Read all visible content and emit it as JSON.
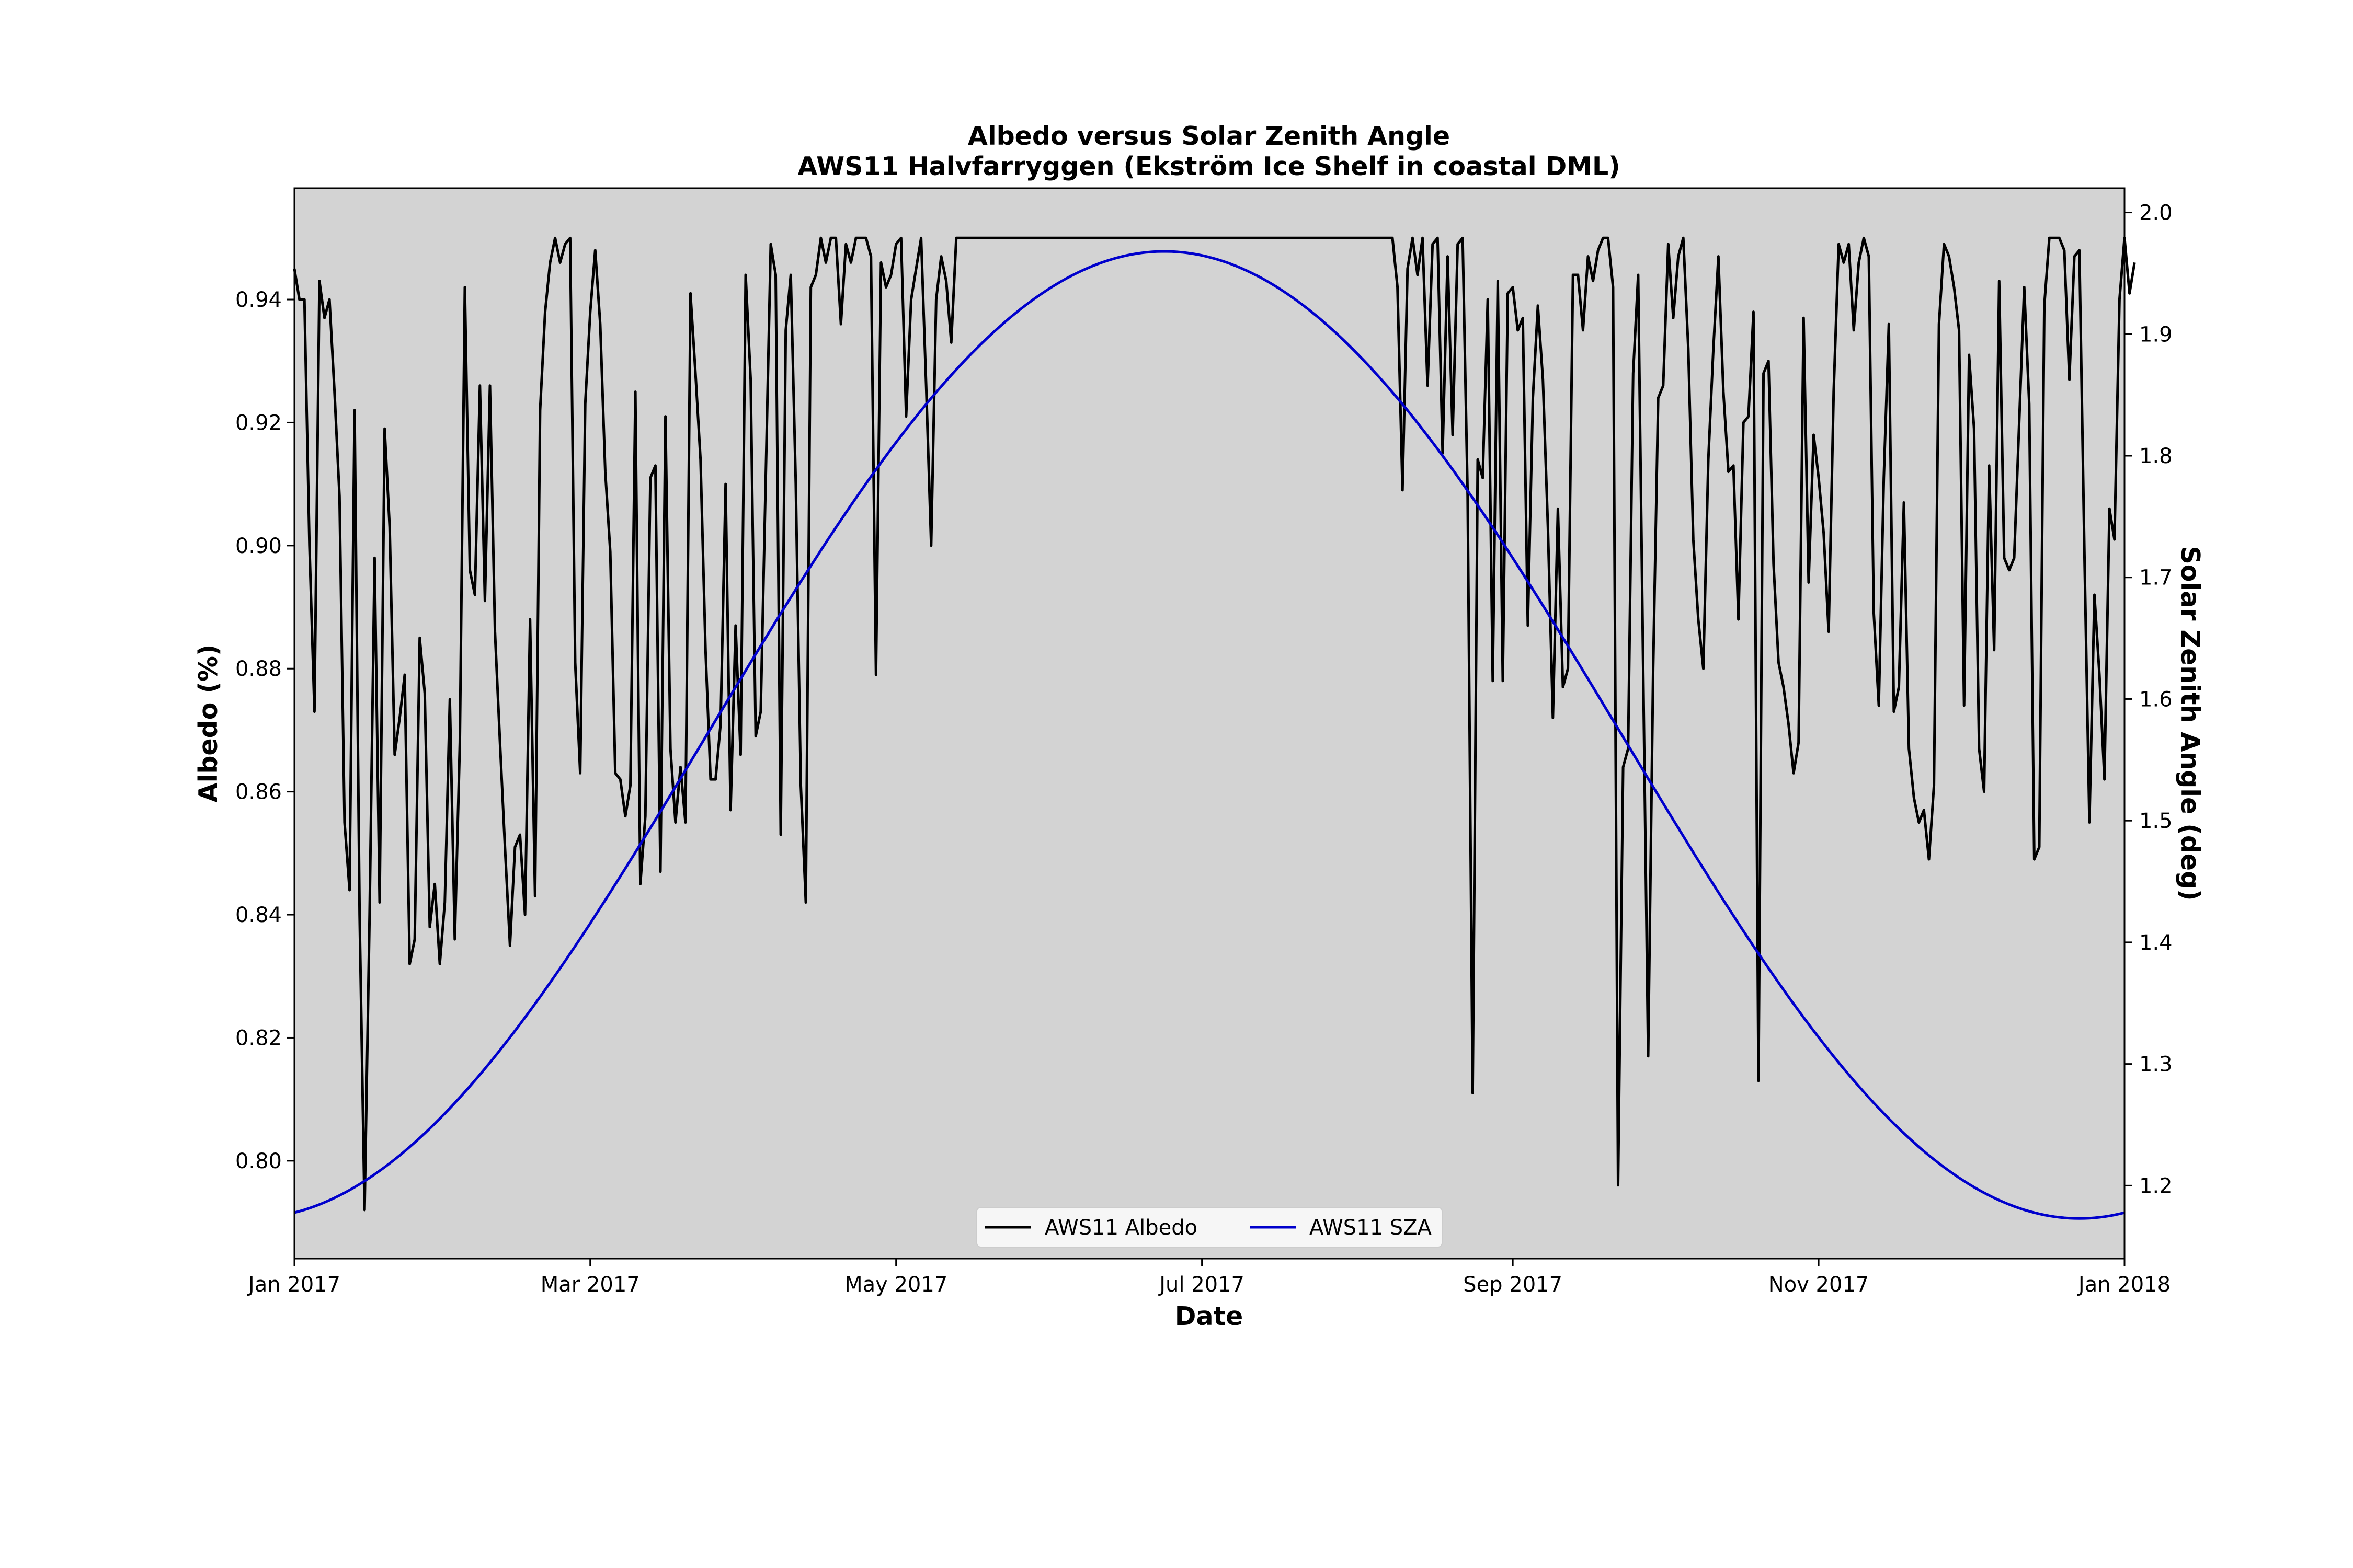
{
  "chart_data": {
    "type": "line",
    "title": "Albedo versus Solar Zenith Angle",
    "subtitle": "AWS11 Halvfarryggen (Ekström Ice Shelf in coastal DML)",
    "xlabel": "Date",
    "ylabel": "Albedo (%)",
    "y2label": "Solar Zenith Angle (deg)",
    "xlim": [
      "2017-01-01",
      "2018-01-01"
    ],
    "ylim": [
      0.7841,
      0.9581
    ],
    "y2lim": [
      1.14,
      2.02
    ],
    "x_ticks": [
      {
        "date": "2017-01-01",
        "label": "Jan 2017"
      },
      {
        "date": "2017-03-01",
        "label": "Mar 2017"
      },
      {
        "date": "2017-05-01",
        "label": "May 2017"
      },
      {
        "date": "2017-07-01",
        "label": "Jul 2017"
      },
      {
        "date": "2017-09-01",
        "label": "Sep 2017"
      },
      {
        "date": "2017-11-01",
        "label": "Nov 2017"
      },
      {
        "date": "2018-01-01",
        "label": "Jan 2018"
      }
    ],
    "y_ticks": [
      "0.80",
      "0.82",
      "0.84",
      "0.86",
      "0.88",
      "0.90",
      "0.92",
      "0.94"
    ],
    "y2_ticks": [
      "1.2",
      "1.3",
      "1.4",
      "1.5",
      "1.6",
      "1.7",
      "1.8",
      "1.9",
      "2.0"
    ],
    "grid": false,
    "legend_position": "bottom-center",
    "background_color": "#d3d3d3",
    "series": [
      {
        "name": "AWS11 Albedo",
        "axis": "left",
        "color": "#000000",
        "x_start": "2017-01-01",
        "x_step_days": 1,
        "values": [
          0.945,
          0.94,
          0.94,
          0.9,
          0.873,
          0.943,
          0.937,
          0.94,
          0.925,
          0.908,
          0.855,
          0.844,
          0.922,
          0.84,
          0.792,
          0.84,
          0.898,
          0.842,
          0.919,
          0.903,
          0.866,
          0.872,
          0.879,
          0.832,
          0.836,
          0.885,
          0.876,
          0.838,
          0.845,
          0.832,
          0.842,
          0.875,
          0.836,
          0.868,
          0.942,
          0.896,
          0.892,
          0.926,
          0.891,
          0.926,
          0.886,
          0.868,
          0.851,
          0.835,
          0.851,
          0.853,
          0.84,
          0.888,
          0.843,
          0.922,
          0.938,
          0.946,
          0.95,
          0.946,
          0.949,
          0.95,
          0.881,
          0.863,
          0.923,
          0.938,
          0.948,
          0.936,
          0.912,
          0.899,
          0.863,
          0.862,
          0.856,
          0.861,
          0.925,
          0.845,
          0.856,
          0.911,
          0.913,
          0.847,
          0.921,
          0.867,
          0.855,
          0.864,
          0.855,
          0.941,
          0.928,
          0.914,
          0.883,
          0.862,
          0.862,
          0.871,
          0.91,
          0.857,
          0.887,
          0.866,
          0.944,
          0.927,
          0.869,
          0.873,
          0.911,
          0.949,
          0.944,
          0.853,
          0.935,
          0.944,
          0.91,
          0.861,
          0.842,
          0.942,
          0.944,
          0.95,
          0.946,
          0.95,
          0.95,
          0.936,
          0.949,
          0.946,
          0.95,
          0.95,
          0.95,
          0.947,
          0.879,
          0.946,
          0.942,
          0.944,
          0.949,
          0.95,
          0.921,
          0.94,
          0.945,
          0.95,
          0.926,
          0.9,
          0.94,
          0.947,
          0.943,
          0.933,
          0.95,
          0.95,
          0.95,
          0.95,
          0.95,
          0.95,
          0.95,
          0.95,
          0.95,
          0.95,
          0.95,
          0.95,
          0.95,
          0.95,
          0.95,
          0.95,
          0.95,
          0.95,
          0.95,
          0.95,
          0.95,
          0.95,
          0.95,
          0.95,
          0.95,
          0.95,
          0.95,
          0.95,
          0.95,
          0.95,
          0.95,
          0.95,
          0.95,
          0.95,
          0.95,
          0.95,
          0.95,
          0.95,
          0.95,
          0.95,
          0.95,
          0.95,
          0.95,
          0.95,
          0.95,
          0.95,
          0.95,
          0.95,
          0.95,
          0.95,
          0.95,
          0.95,
          0.95,
          0.95,
          0.95,
          0.95,
          0.95,
          0.95,
          0.95,
          0.95,
          0.95,
          0.95,
          0.95,
          0.95,
          0.95,
          0.95,
          0.95,
          0.95,
          0.95,
          0.95,
          0.95,
          0.95,
          0.95,
          0.95,
          0.95,
          0.95,
          0.95,
          0.95,
          0.95,
          0.95,
          0.95,
          0.95,
          0.95,
          0.95,
          0.95,
          0.95,
          0.95,
          0.95,
          0.942,
          0.909,
          0.945,
          0.95,
          0.944,
          0.95,
          0.926,
          0.949,
          0.95,
          0.915,
          0.947,
          0.918,
          0.949,
          0.95,
          0.908,
          0.811,
          0.914,
          0.911,
          0.94,
          0.878,
          0.943,
          0.878,
          0.941,
          0.942,
          0.935,
          0.937,
          0.887,
          0.924,
          0.939,
          0.927,
          0.903,
          0.872,
          0.906,
          0.877,
          0.88,
          0.944,
          0.944,
          0.935,
          0.947,
          0.943,
          0.948,
          0.95,
          0.95,
          0.942,
          0.796,
          0.864,
          0.867,
          0.928,
          0.944,
          0.88,
          0.817,
          0.88,
          0.924,
          0.926,
          0.949,
          0.937,
          0.947,
          0.95,
          0.932,
          0.901,
          0.888,
          0.88,
          0.914,
          0.932,
          0.947,
          0.925,
          0.912,
          0.913,
          0.888,
          0.92,
          0.921,
          0.938,
          0.813,
          0.928,
          0.93,
          0.897,
          0.881,
          0.877,
          0.871,
          0.863,
          0.868,
          0.937,
          0.894,
          0.918,
          0.911,
          0.902,
          0.886,
          0.925,
          0.949,
          0.946,
          0.949,
          0.935,
          0.946,
          0.95,
          0.947,
          0.889,
          0.874,
          0.911,
          0.936,
          0.873,
          0.877,
          0.907,
          0.867,
          0.859,
          0.855,
          0.857,
          0.849,
          0.861,
          0.936,
          0.949,
          0.947,
          0.942,
          0.935,
          0.874,
          0.931,
          0.919,
          0.867,
          0.86,
          0.913,
          0.883,
          0.943,
          0.898,
          0.896,
          0.898,
          0.92,
          0.942,
          0.923,
          0.849,
          0.851,
          0.939,
          0.95,
          0.95,
          0.95,
          0.948,
          0.927,
          0.947,
          0.948,
          0.899,
          0.855,
          0.892,
          0.879,
          0.862,
          0.906,
          0.901,
          0.94,
          0.95,
          0.941,
          0.946
        ]
      },
      {
        "name": "AWS11 SZA",
        "axis": "right",
        "color": "#0000cc",
        "x_start": "2017-01-01",
        "x_step_days": 1,
        "model": "min + (max - min) * (1 - cos(2*pi*(day - 356)/365)) / 2",
        "min": 1.173,
        "max": 1.968
      }
    ]
  }
}
